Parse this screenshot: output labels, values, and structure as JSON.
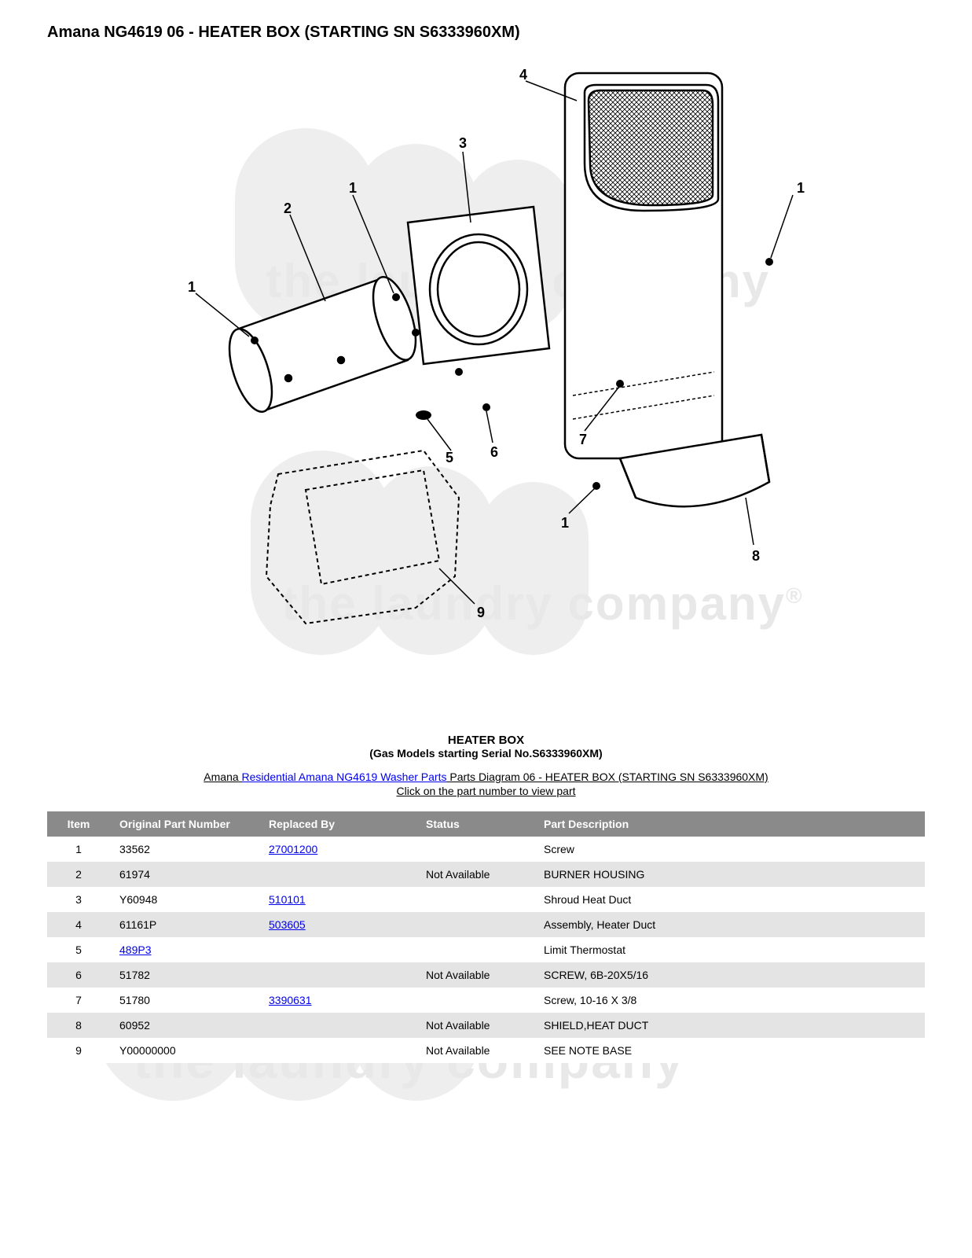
{
  "page": {
    "title": "Amana NG4619 06 - HEATER BOX (STARTING SN S6333960XM)"
  },
  "diagram": {
    "title": "HEATER BOX",
    "subtitle": "(Gas Models starting Serial No.S6333960XM)",
    "callouts": [
      "1",
      "2",
      "3",
      "4",
      "5",
      "6",
      "7",
      "8",
      "9",
      "1",
      "1",
      "1"
    ],
    "watermark_text": "the laundry company",
    "watermark_color": "#e8e8e8"
  },
  "breadcrumb": {
    "prefix": "Amana",
    "link_text": "Residential Amana NG4619 Washer Parts",
    "suffix": " Parts Diagram 06 - HEATER BOX (STARTING SN S6333960XM)"
  },
  "hint": "Click on the part number to view part",
  "table": {
    "header_bg": "#8a8a8a",
    "header_fg": "#ffffff",
    "row_even_bg": "#e4e4e4",
    "row_odd_bg": "#ffffff",
    "link_color": "#0000ee",
    "columns": [
      "Item",
      "Original Part Number",
      "Replaced By",
      "Status",
      "Part Description"
    ],
    "rows": [
      {
        "item": "1",
        "orig": "33562",
        "orig_link": false,
        "repl": "27001200",
        "repl_link": true,
        "status": "",
        "desc": "Screw"
      },
      {
        "item": "2",
        "orig": "61974",
        "orig_link": false,
        "repl": "",
        "repl_link": false,
        "status": "Not Available",
        "desc": "BURNER HOUSING"
      },
      {
        "item": "3",
        "orig": "Y60948",
        "orig_link": false,
        "repl": "510101",
        "repl_link": true,
        "status": "",
        "desc": "Shroud Heat Duct"
      },
      {
        "item": "4",
        "orig": "61161P",
        "orig_link": false,
        "repl": "503605",
        "repl_link": true,
        "status": "",
        "desc": "Assembly, Heater Duct"
      },
      {
        "item": "5",
        "orig": "489P3",
        "orig_link": true,
        "repl": "",
        "repl_link": false,
        "status": "",
        "desc": "Limit Thermostat"
      },
      {
        "item": "6",
        "orig": "51782",
        "orig_link": false,
        "repl": "",
        "repl_link": false,
        "status": "Not Available",
        "desc": "SCREW, 6B-20X5/16"
      },
      {
        "item": "7",
        "orig": "51780",
        "orig_link": false,
        "repl": "3390631",
        "repl_link": true,
        "status": "",
        "desc": "Screw, 10-16 X 3/8"
      },
      {
        "item": "8",
        "orig": "60952",
        "orig_link": false,
        "repl": "",
        "repl_link": false,
        "status": "Not Available",
        "desc": "SHIELD,HEAT DUCT"
      },
      {
        "item": "9",
        "orig": "Y00000000",
        "orig_link": false,
        "repl": "",
        "repl_link": false,
        "status": "Not Available",
        "desc": "SEE NOTE BASE"
      }
    ]
  }
}
